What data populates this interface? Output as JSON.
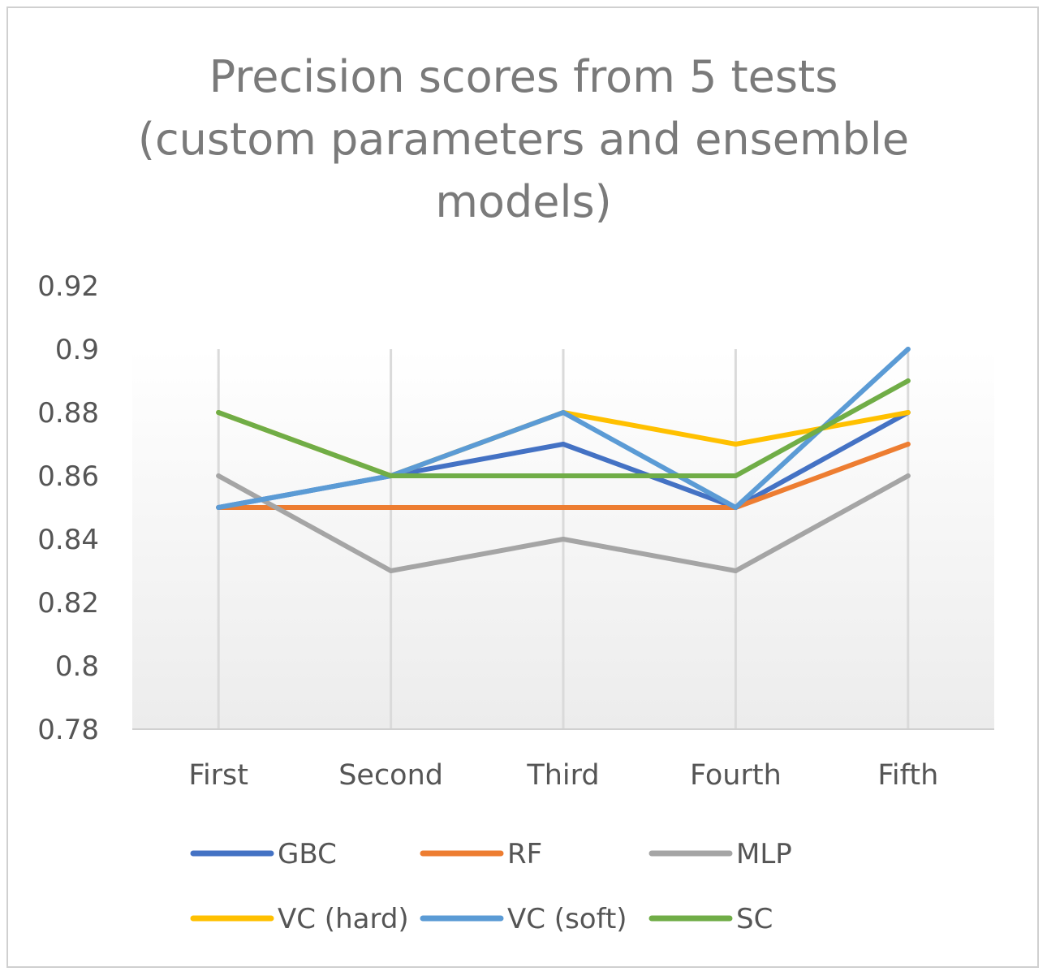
{
  "chart_data": {
    "type": "line",
    "title_lines": [
      "Precision scores from 5 tests",
      "(custom parameters and ensemble",
      "models)"
    ],
    "categories": [
      "First",
      "Second",
      "Third",
      "Fourth",
      "Fifth"
    ],
    "ylim": [
      0.78,
      0.92
    ],
    "yticks": [
      "0.78",
      "0.8",
      "0.82",
      "0.84",
      "0.86",
      "0.88",
      "0.9",
      "0.92"
    ],
    "ytick_values": [
      0.78,
      0.8,
      0.82,
      0.84,
      0.86,
      0.88,
      0.9,
      0.92
    ],
    "grid": "vertical",
    "legend_position": "bottom",
    "series": [
      {
        "name": "GBC",
        "color": "#4472c4",
        "values": [
          0.85,
          0.86,
          0.87,
          0.85,
          0.88
        ]
      },
      {
        "name": "RF",
        "color": "#ed7d31",
        "values": [
          0.85,
          0.85,
          0.85,
          0.85,
          0.87
        ]
      },
      {
        "name": "MLP",
        "color": "#a5a5a5",
        "values": [
          0.86,
          0.83,
          0.84,
          0.83,
          0.86
        ]
      },
      {
        "name": "VC (hard)",
        "color": "#ffc000",
        "values": [
          0.88,
          0.86,
          0.88,
          0.87,
          0.88
        ]
      },
      {
        "name": "VC (soft)",
        "color": "#5b9bd5",
        "values": [
          0.85,
          0.86,
          0.88,
          0.85,
          0.9
        ]
      },
      {
        "name": "SC",
        "color": "#70ad47",
        "values": [
          0.88,
          0.86,
          0.86,
          0.86,
          0.89
        ]
      }
    ]
  }
}
